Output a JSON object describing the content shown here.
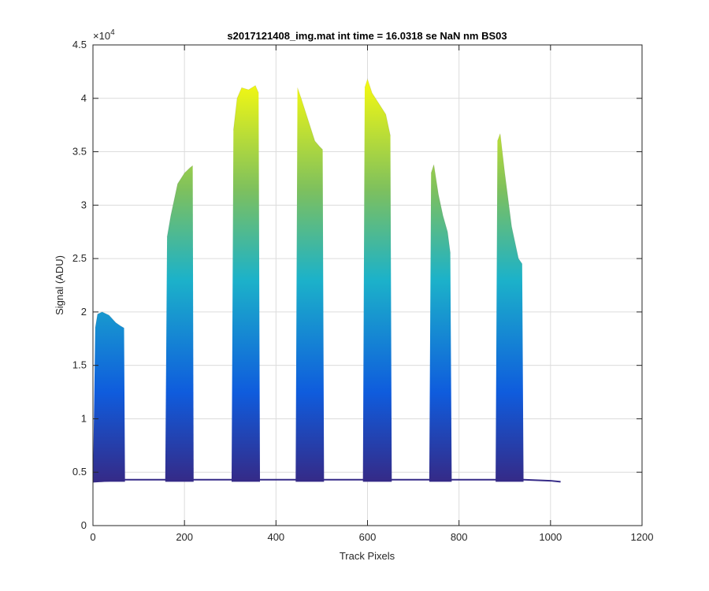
{
  "chart_data": {
    "type": "area",
    "title": "s2017121408_img.mat int time = 16.0318 se  NaN nm BS03",
    "xlabel": "Track Pixels",
    "ylabel": "Signal (ADU)",
    "xlim": [
      0,
      1200
    ],
    "ylim": [
      0,
      45000
    ],
    "y_exponent_label": "×10",
    "y_exponent_power": "4",
    "xticks": [
      0,
      200,
      400,
      600,
      800,
      1000,
      1200
    ],
    "xtick_labels": [
      "0",
      "200",
      "400",
      "600",
      "800",
      "1000",
      "1200"
    ],
    "yticks": [
      0,
      5000,
      10000,
      15000,
      20000,
      25000,
      30000,
      35000,
      40000,
      45000
    ],
    "ytick_labels": [
      "0",
      "0.5",
      "1",
      "1.5",
      "2",
      "2.5",
      "3",
      "3.5",
      "4",
      "4.5"
    ],
    "grid": true,
    "colormap": "parula",
    "colors": {
      "low": "#352a87",
      "mid_low": "#0f5cdd",
      "mid": "#1cb2c9",
      "mid_high": "#7dc05e",
      "high": "#f9fb0e"
    },
    "baseline": 4100,
    "peaks": [
      {
        "x": [
          0,
          5,
          10,
          20,
          35,
          50,
          60,
          68,
          70
        ],
        "y": [
          4100,
          18500,
          19800,
          20000,
          19700,
          19000,
          18700,
          18500,
          4300
        ]
      },
      {
        "x": [
          158,
          162,
          170,
          185,
          200,
          212,
          218,
          220
        ],
        "y": [
          4300,
          27000,
          29000,
          32000,
          33000,
          33500,
          33700,
          4300
        ]
      },
      {
        "x": [
          303,
          307,
          315,
          325,
          340,
          355,
          362,
          365
        ],
        "y": [
          4300,
          37000,
          40000,
          41000,
          40800,
          41200,
          40500,
          4300
        ]
      },
      {
        "x": [
          443,
          447,
          455,
          470,
          485,
          495,
          502,
          505
        ],
        "y": [
          4300,
          41000,
          40000,
          38000,
          36000,
          35500,
          35200,
          4300
        ]
      },
      {
        "x": [
          590,
          594,
          600,
          610,
          625,
          640,
          650,
          653
        ],
        "y": [
          4300,
          41000,
          41800,
          40500,
          39500,
          38500,
          36500,
          4300
        ]
      },
      {
        "x": [
          735,
          739,
          745,
          755,
          765,
          775,
          781,
          784
        ],
        "y": [
          4300,
          33000,
          33800,
          31000,
          29000,
          27500,
          25500,
          4300
        ]
      },
      {
        "x": [
          880,
          884,
          890,
          900,
          915,
          930,
          938,
          941
        ],
        "y": [
          4300,
          36000,
          36700,
          33000,
          28000,
          25000,
          24500,
          4300
        ]
      }
    ],
    "tail": {
      "x": [
        941,
        1000,
        1022
      ],
      "y": [
        4300,
        4200,
        4100
      ]
    }
  }
}
